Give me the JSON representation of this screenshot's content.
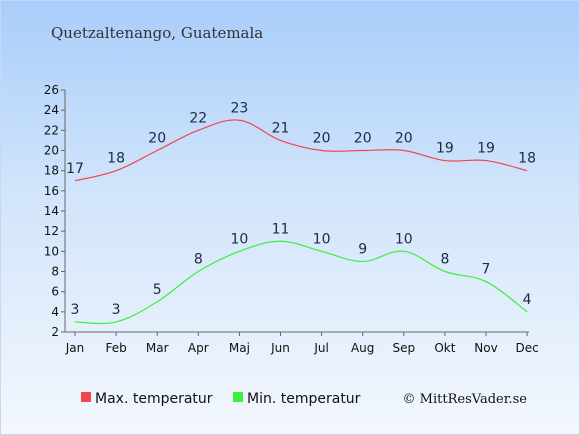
{
  "chart_data": {
    "type": "line",
    "title": "Quetzaltenango, Guatemala",
    "categories": [
      "Jan",
      "Feb",
      "Mar",
      "Apr",
      "Maj",
      "Jun",
      "Jul",
      "Aug",
      "Sep",
      "Okt",
      "Nov",
      "Dec"
    ],
    "series": [
      {
        "name": "Max. temperatur",
        "color": "#f04848",
        "values": [
          17,
          18,
          20,
          22,
          23,
          21,
          20,
          20,
          20,
          19,
          19,
          18
        ]
      },
      {
        "name": "Min. temperatur",
        "color": "#3cf03c",
        "values": [
          3,
          3,
          5,
          8,
          10,
          11,
          10,
          9,
          10,
          8,
          7,
          4
        ]
      }
    ],
    "ylim": [
      2,
      26
    ],
    "yticks": [
      2,
      4,
      6,
      8,
      10,
      12,
      14,
      16,
      18,
      20,
      22,
      24,
      26
    ],
    "grid": false,
    "legend_position": "bottom",
    "axis_color": "#666666",
    "label_color": "#1e2a44"
  },
  "copyright": "© MittResVader.se"
}
